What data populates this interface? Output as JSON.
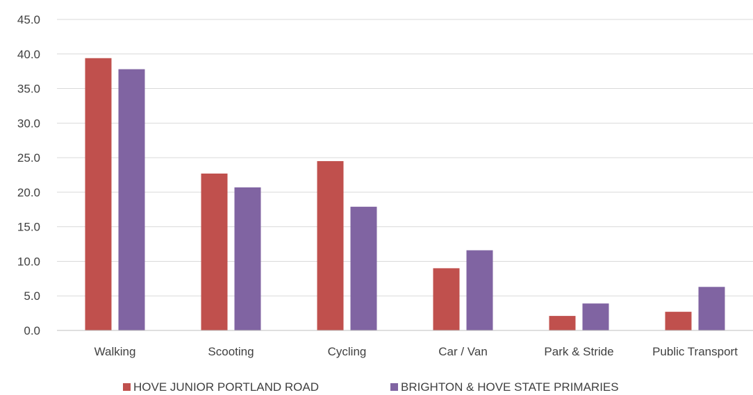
{
  "chart_data": {
    "type": "bar",
    "categories": [
      "Walking",
      "Scooting",
      "Cycling",
      "Car / Van",
      "Park & Stride",
      "Public Transport"
    ],
    "series": [
      {
        "name": "HOVE JUNIOR PORTLAND ROAD",
        "color": "#c0504d",
        "values": [
          39.4,
          22.7,
          24.5,
          9.0,
          2.1,
          2.7
        ]
      },
      {
        "name": "BRIGHTON & HOVE STATE PRIMARIES",
        "color": "#8064a2",
        "values": [
          37.8,
          20.7,
          17.9,
          11.6,
          3.9,
          6.3
        ]
      }
    ],
    "ylim": [
      0,
      45
    ],
    "yticks": [
      "0.0",
      "5.0",
      "10.0",
      "15.0",
      "20.0",
      "25.0",
      "30.0",
      "35.0",
      "40.0",
      "45.0"
    ],
    "grid": true,
    "legend_position": "bottom",
    "title": "",
    "xlabel": "",
    "ylabel": ""
  }
}
